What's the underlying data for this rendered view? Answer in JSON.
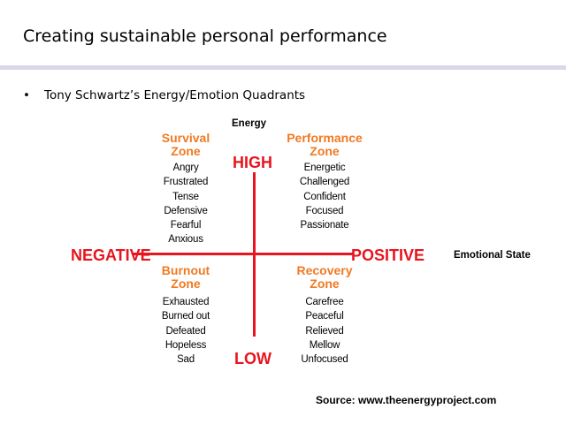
{
  "slide": {
    "title": "Creating sustainable personal performance",
    "bullet": "Tony Schwartz’s Energy/Emotion Quadrants"
  },
  "diagram": {
    "y_axis_label": "Energy",
    "x_axis_label": "Emotional State",
    "high": "HIGH",
    "low": "LOW",
    "negative": "NEGATIVE",
    "positive": "POSITIVE",
    "quadrants": {
      "survival": {
        "title_line1": "Survival",
        "title_line2": "Zone",
        "words": [
          "Angry",
          "Frustrated",
          "Tense",
          "Defensive",
          "Fearful",
          "Anxious"
        ]
      },
      "performance": {
        "title_line1": "Performance",
        "title_line2": "Zone",
        "words": [
          "Energetic",
          "Challenged",
          "Confident",
          "Focused",
          "Passionate"
        ]
      },
      "burnout": {
        "title_line1": "Burnout",
        "title_line2": "Zone",
        "words": [
          "Exhausted",
          "Burned out",
          "Defeated",
          "Hopeless",
          "Sad"
        ]
      },
      "recovery": {
        "title_line1": "Recovery",
        "title_line2": "Zone",
        "words": [
          "Carefree",
          "Peaceful",
          "Relieved",
          "Mellow",
          "Unfocused"
        ]
      }
    },
    "source": "Source: www.theenergyproject.com"
  },
  "colors": {
    "axis": "#e8141e",
    "zone_title": "#f07a22",
    "title_rule": "#d8d8e8"
  }
}
